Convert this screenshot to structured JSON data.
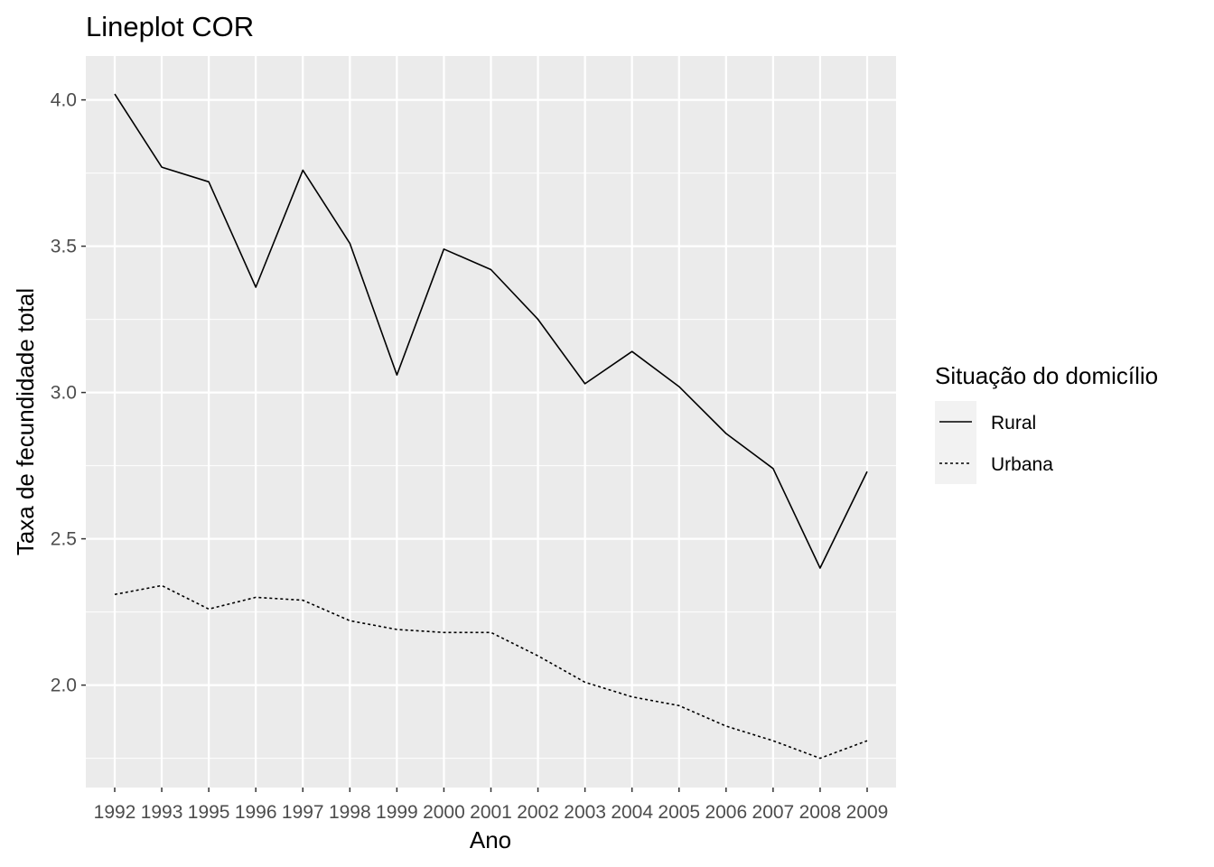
{
  "chart_data": {
    "type": "line",
    "title": "Lineplot COR",
    "xlabel": "Ano",
    "ylabel": "Taxa de fecundidade total",
    "categories": [
      "1992",
      "1993",
      "1995",
      "1996",
      "1997",
      "1998",
      "1999",
      "2000",
      "2001",
      "2002",
      "2003",
      "2004",
      "2005",
      "2006",
      "2007",
      "2008",
      "2009"
    ],
    "yticks": [
      "2.0",
      "2.5",
      "3.0",
      "3.5",
      "4.0"
    ],
    "ylim": [
      1.65,
      4.15
    ],
    "grid": true,
    "legend": {
      "title": "Situação do domicílio",
      "placement": "right"
    },
    "series": [
      {
        "name": "Rural",
        "line_style": "solid",
        "color": "#000000",
        "values": [
          4.02,
          3.77,
          3.72,
          3.36,
          3.76,
          3.51,
          3.06,
          3.49,
          3.42,
          3.25,
          3.03,
          3.14,
          3.02,
          2.86,
          2.74,
          2.4,
          2.73
        ]
      },
      {
        "name": "Urbana",
        "line_style": "dotted",
        "color": "#000000",
        "values": [
          2.31,
          2.34,
          2.26,
          2.3,
          2.29,
          2.22,
          2.19,
          2.18,
          2.18,
          2.1,
          2.01,
          1.96,
          1.93,
          1.86,
          1.81,
          1.75,
          1.81
        ]
      }
    ]
  },
  "colors": {
    "panel_background": "#ebebeb",
    "grid": "#ffffff",
    "legend_key_background": "#f2f2f2"
  }
}
